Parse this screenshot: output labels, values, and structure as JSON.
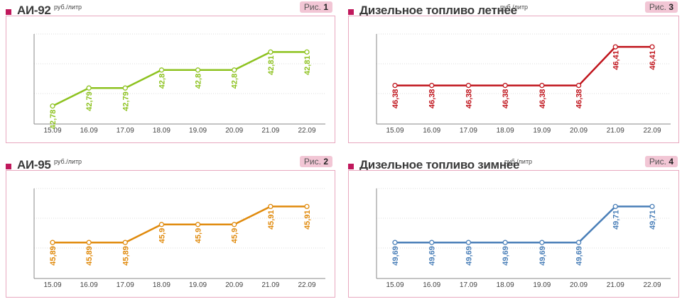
{
  "figure_label": "Рис.",
  "panels": [
    {
      "title": "АИ-92",
      "unit": "руб./литр",
      "figure_number": "1",
      "color": "#8dc21f",
      "chart_data": {
        "type": "line",
        "categories": [
          "15.09",
          "16.09",
          "17.09",
          "18.09",
          "19.09",
          "20.09",
          "21.09",
          "22.09"
        ],
        "values": [
          42.78,
          42.79,
          42.79,
          42.8,
          42.8,
          42.8,
          42.81,
          42.81
        ],
        "labels": [
          "42,78",
          "42,79",
          "42,79",
          "42,8",
          "42,8",
          "42,8",
          "42,81",
          "42,81"
        ],
        "ylim": [
          42.77,
          42.82
        ]
      }
    },
    {
      "title": "Дизельное топливо летнее",
      "unit": "руб./литр",
      "figure_number": "3",
      "color": "#c0141c",
      "chart_data": {
        "type": "line",
        "categories": [
          "15.09",
          "16.09",
          "17.09",
          "18.09",
          "19.09",
          "20.09",
          "21.09",
          "22.09"
        ],
        "values": [
          46.38,
          46.38,
          46.38,
          46.38,
          46.38,
          46.38,
          46.41,
          46.41
        ],
        "labels": [
          "46,38",
          "46,38",
          "46,38",
          "46,38",
          "46,38",
          "46,38",
          "46,41",
          "46,41"
        ],
        "ylim": [
          46.35,
          46.42
        ]
      }
    },
    {
      "title": "АИ-95",
      "unit": "руб./литр",
      "figure_number": "2",
      "color": "#e08a0c",
      "chart_data": {
        "type": "line",
        "categories": [
          "15.09",
          "16.09",
          "17.09",
          "18.09",
          "19.09",
          "20.09",
          "21.09",
          "22.09"
        ],
        "values": [
          45.89,
          45.89,
          45.89,
          45.9,
          45.9,
          45.9,
          45.91,
          45.91
        ],
        "labels": [
          "45,89",
          "45,89",
          "45,89",
          "45,9",
          "45,9",
          "45,9",
          "45,91",
          "45,91"
        ],
        "ylim": [
          45.87,
          45.92
        ]
      }
    },
    {
      "title": "Дизельное топливо зимнее",
      "unit": "руб./литр",
      "figure_number": "4",
      "color": "#4a7fb8",
      "chart_data": {
        "type": "line",
        "categories": [
          "15.09",
          "16.09",
          "17.09",
          "18.09",
          "19.09",
          "20.09",
          "21.09",
          "22.09"
        ],
        "values": [
          49.69,
          49.69,
          49.69,
          49.69,
          49.69,
          49.69,
          49.71,
          49.71
        ],
        "labels": [
          "49,69",
          "49,69",
          "49,69",
          "49,69",
          "49,69",
          "49,69",
          "49,71",
          "49,71"
        ],
        "ylim": [
          49.67,
          49.72
        ]
      }
    }
  ]
}
